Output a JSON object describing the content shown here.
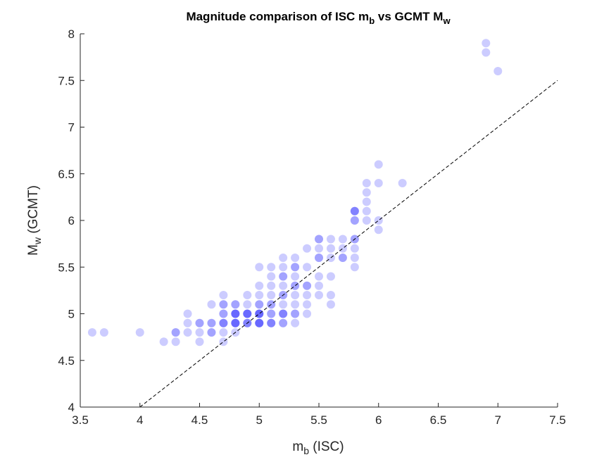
{
  "chart_data": {
    "type": "scatter",
    "title": {
      "text": "Magnitude comparison of ISC m",
      "sub1": "b",
      "mid": " vs GCMT M",
      "sub2": "w"
    },
    "xlabel": {
      "text": "m",
      "sub": "b",
      "tail": " (ISC)"
    },
    "ylabel": {
      "text": "M",
      "sub": "w",
      "tail": " (GCMT)"
    },
    "xlim": [
      3.5,
      7.5
    ],
    "ylim": [
      4,
      8
    ],
    "xticks": [
      "3.5",
      "4",
      "4.5",
      "5",
      "5.5",
      "6",
      "6.5",
      "7",
      "7.5"
    ],
    "yticks": [
      "4",
      "4.5",
      "5",
      "5.5",
      "6",
      "6.5",
      "7",
      "7.5",
      "8"
    ],
    "grid": false,
    "marker_color": "#0000ff",
    "marker_alpha": 0.2,
    "reference_line": {
      "style": "dashed",
      "color": "#000000",
      "x": [
        4,
        7.5
      ],
      "y": [
        4,
        7.5
      ]
    },
    "points": [
      {
        "x": 3.6,
        "y": 4.8
      },
      {
        "x": 3.7,
        "y": 4.8
      },
      {
        "x": 4.0,
        "y": 4.8
      },
      {
        "x": 4.2,
        "y": 4.7
      },
      {
        "x": 4.3,
        "y": 4.7
      },
      {
        "x": 4.3,
        "y": 4.8
      },
      {
        "x": 4.3,
        "y": 4.8
      },
      {
        "x": 4.4,
        "y": 4.8
      },
      {
        "x": 4.4,
        "y": 4.9
      },
      {
        "x": 4.4,
        "y": 5.0
      },
      {
        "x": 4.5,
        "y": 4.7
      },
      {
        "x": 4.5,
        "y": 4.8
      },
      {
        "x": 4.5,
        "y": 4.9
      },
      {
        "x": 4.5,
        "y": 4.9
      },
      {
        "x": 4.6,
        "y": 4.8
      },
      {
        "x": 4.6,
        "y": 4.8
      },
      {
        "x": 4.6,
        "y": 4.9
      },
      {
        "x": 4.6,
        "y": 4.9
      },
      {
        "x": 4.6,
        "y": 5.1
      },
      {
        "x": 4.7,
        "y": 4.7
      },
      {
        "x": 4.7,
        "y": 4.8
      },
      {
        "x": 4.7,
        "y": 4.9
      },
      {
        "x": 4.7,
        "y": 4.9
      },
      {
        "x": 4.7,
        "y": 4.9
      },
      {
        "x": 4.7,
        "y": 5.0
      },
      {
        "x": 4.7,
        "y": 5.0
      },
      {
        "x": 4.7,
        "y": 5.1
      },
      {
        "x": 4.7,
        "y": 5.1
      },
      {
        "x": 4.7,
        "y": 5.2
      },
      {
        "x": 4.8,
        "y": 4.8
      },
      {
        "x": 4.8,
        "y": 4.9
      },
      {
        "x": 4.8,
        "y": 4.9
      },
      {
        "x": 4.8,
        "y": 4.9
      },
      {
        "x": 4.8,
        "y": 4.9
      },
      {
        "x": 4.8,
        "y": 5.0
      },
      {
        "x": 4.8,
        "y": 5.0
      },
      {
        "x": 4.8,
        "y": 5.0
      },
      {
        "x": 4.8,
        "y": 5.0
      },
      {
        "x": 4.8,
        "y": 5.1
      },
      {
        "x": 4.8,
        "y": 5.1
      },
      {
        "x": 4.9,
        "y": 4.9
      },
      {
        "x": 4.9,
        "y": 4.9
      },
      {
        "x": 4.9,
        "y": 4.9
      },
      {
        "x": 4.9,
        "y": 5.0
      },
      {
        "x": 4.9,
        "y": 5.0
      },
      {
        "x": 4.9,
        "y": 5.0
      },
      {
        "x": 4.9,
        "y": 5.0
      },
      {
        "x": 4.9,
        "y": 5.1
      },
      {
        "x": 4.9,
        "y": 5.2
      },
      {
        "x": 5.0,
        "y": 4.9
      },
      {
        "x": 5.0,
        "y": 4.9
      },
      {
        "x": 5.0,
        "y": 4.9
      },
      {
        "x": 5.0,
        "y": 4.9
      },
      {
        "x": 5.0,
        "y": 5.0
      },
      {
        "x": 5.0,
        "y": 5.0
      },
      {
        "x": 5.0,
        "y": 5.0
      },
      {
        "x": 5.0,
        "y": 5.0
      },
      {
        "x": 5.0,
        "y": 5.1
      },
      {
        "x": 5.0,
        "y": 5.1
      },
      {
        "x": 5.0,
        "y": 5.2
      },
      {
        "x": 5.0,
        "y": 5.3
      },
      {
        "x": 5.0,
        "y": 5.5
      },
      {
        "x": 5.1,
        "y": 4.9
      },
      {
        "x": 5.1,
        "y": 4.9
      },
      {
        "x": 5.1,
        "y": 4.9
      },
      {
        "x": 5.1,
        "y": 5.0
      },
      {
        "x": 5.1,
        "y": 5.0
      },
      {
        "x": 5.1,
        "y": 5.1
      },
      {
        "x": 5.1,
        "y": 5.1
      },
      {
        "x": 5.1,
        "y": 5.2
      },
      {
        "x": 5.1,
        "y": 5.3
      },
      {
        "x": 5.1,
        "y": 5.4
      },
      {
        "x": 5.1,
        "y": 5.5
      },
      {
        "x": 5.2,
        "y": 4.9
      },
      {
        "x": 5.2,
        "y": 4.9
      },
      {
        "x": 5.2,
        "y": 5.0
      },
      {
        "x": 5.2,
        "y": 5.0
      },
      {
        "x": 5.2,
        "y": 5.0
      },
      {
        "x": 5.2,
        "y": 5.1
      },
      {
        "x": 5.2,
        "y": 5.2
      },
      {
        "x": 5.2,
        "y": 5.2
      },
      {
        "x": 5.2,
        "y": 5.3
      },
      {
        "x": 5.2,
        "y": 5.4
      },
      {
        "x": 5.2,
        "y": 5.4
      },
      {
        "x": 5.2,
        "y": 5.5
      },
      {
        "x": 5.2,
        "y": 5.6
      },
      {
        "x": 5.3,
        "y": 4.9
      },
      {
        "x": 5.3,
        "y": 5.0
      },
      {
        "x": 5.3,
        "y": 5.0
      },
      {
        "x": 5.3,
        "y": 5.1
      },
      {
        "x": 5.3,
        "y": 5.2
      },
      {
        "x": 5.3,
        "y": 5.3
      },
      {
        "x": 5.3,
        "y": 5.3
      },
      {
        "x": 5.3,
        "y": 5.4
      },
      {
        "x": 5.3,
        "y": 5.5
      },
      {
        "x": 5.3,
        "y": 5.5
      },
      {
        "x": 5.3,
        "y": 5.6
      },
      {
        "x": 5.4,
        "y": 5.0
      },
      {
        "x": 5.4,
        "y": 5.1
      },
      {
        "x": 5.4,
        "y": 5.2
      },
      {
        "x": 5.4,
        "y": 5.3
      },
      {
        "x": 5.4,
        "y": 5.3
      },
      {
        "x": 5.4,
        "y": 5.5
      },
      {
        "x": 5.4,
        "y": 5.7
      },
      {
        "x": 5.5,
        "y": 5.2
      },
      {
        "x": 5.5,
        "y": 5.3
      },
      {
        "x": 5.5,
        "y": 5.4
      },
      {
        "x": 5.5,
        "y": 5.6
      },
      {
        "x": 5.5,
        "y": 5.6
      },
      {
        "x": 5.5,
        "y": 5.7
      },
      {
        "x": 5.5,
        "y": 5.8
      },
      {
        "x": 5.5,
        "y": 5.8
      },
      {
        "x": 5.6,
        "y": 5.1
      },
      {
        "x": 5.6,
        "y": 5.2
      },
      {
        "x": 5.6,
        "y": 5.4
      },
      {
        "x": 5.6,
        "y": 5.6
      },
      {
        "x": 5.6,
        "y": 5.7
      },
      {
        "x": 5.6,
        "y": 5.8
      },
      {
        "x": 5.7,
        "y": 5.6
      },
      {
        "x": 5.7,
        "y": 5.6
      },
      {
        "x": 5.7,
        "y": 5.7
      },
      {
        "x": 5.7,
        "y": 5.8
      },
      {
        "x": 5.8,
        "y": 5.5
      },
      {
        "x": 5.8,
        "y": 5.6
      },
      {
        "x": 5.8,
        "y": 5.7
      },
      {
        "x": 5.8,
        "y": 5.8
      },
      {
        "x": 5.8,
        "y": 5.8
      },
      {
        "x": 5.8,
        "y": 6.0
      },
      {
        "x": 5.8,
        "y": 6.0
      },
      {
        "x": 5.8,
        "y": 6.1
      },
      {
        "x": 5.8,
        "y": 6.1
      },
      {
        "x": 5.8,
        "y": 6.1
      },
      {
        "x": 5.9,
        "y": 6.0
      },
      {
        "x": 5.9,
        "y": 6.1
      },
      {
        "x": 5.9,
        "y": 6.2
      },
      {
        "x": 5.9,
        "y": 6.3
      },
      {
        "x": 5.9,
        "y": 6.4
      },
      {
        "x": 6.0,
        "y": 5.9
      },
      {
        "x": 6.0,
        "y": 6.0
      },
      {
        "x": 6.0,
        "y": 6.4
      },
      {
        "x": 6.0,
        "y": 6.6
      },
      {
        "x": 6.2,
        "y": 6.4
      },
      {
        "x": 6.9,
        "y": 7.8
      },
      {
        "x": 6.9,
        "y": 7.9
      },
      {
        "x": 7.0,
        "y": 7.6
      }
    ]
  }
}
